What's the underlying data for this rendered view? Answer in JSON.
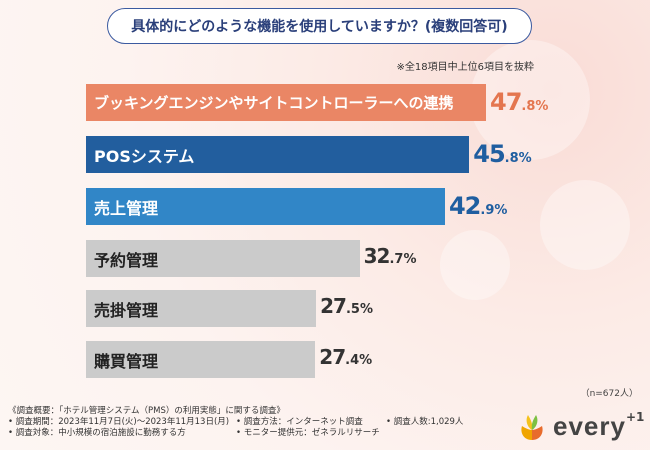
{
  "title": "具体的にどのような機能を使用していますか？(複数回答可)",
  "note": "※全18項目中上位6項目を抜粋",
  "sample_note": "（n=672人）",
  "colors": {
    "orange": "#ea8665",
    "dark_blue": "#225e9e",
    "blue": "#3186c7",
    "gray": "#cbcbcb",
    "value_orange": "#e4764f",
    "value_blue": "#1f5ea0",
    "value_gray": "#333333"
  },
  "chart_data": {
    "type": "bar",
    "orientation": "horizontal",
    "title": "具体的にどのような機能を使用していますか？(複数回答可)",
    "unit": "%",
    "categories": [
      "ブッキングエンジンやサイトコントローラーへの連携",
      "POSシステム",
      "売上管理",
      "予約管理",
      "売掛管理",
      "購買管理"
    ],
    "values": [
      47.8,
      45.8,
      42.9,
      32.7,
      27.5,
      27.4
    ],
    "value_labels": [
      {
        "int": "47",
        "dec": ".8%"
      },
      {
        "int": "45",
        "dec": ".8%"
      },
      {
        "int": "42",
        "dec": ".9%"
      },
      {
        "int": "32",
        "dec": ".7%"
      },
      {
        "int": "27",
        "dec": ".5%"
      },
      {
        "int": "27",
        "dec": ".4%"
      }
    ],
    "xlim": [
      0,
      50
    ]
  },
  "footer": {
    "overview": "《調査概要：「ホテル管理システム（PMS）の利用実態」に関する調査》",
    "period": "• 調査期間：2023年11月7日(火)〜2023年11月13日(月)",
    "method": "• 調査方法：インターネット調査",
    "count": "• 調査人数:1,029人",
    "target": "• 調査対象：中小規模の宿泊施設に勤務する方",
    "provider": "• モニター提供元：ゼネラルリサーチ"
  },
  "logo": {
    "text": "every",
    "plus": "+1"
  }
}
